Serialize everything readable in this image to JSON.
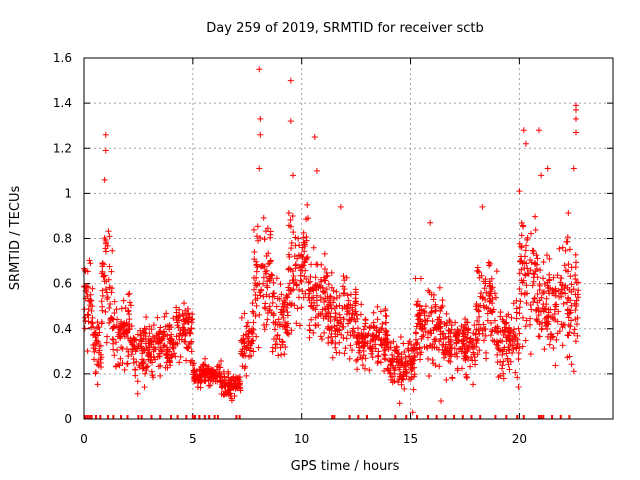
{
  "chart_data": {
    "type": "scatter",
    "title": "Day 259 of 2019, SRMTID for receiver sctb",
    "xlabel": "GPS time / hours",
    "ylabel": "SRMTID / TECUs",
    "xlim": [
      0,
      24.3
    ],
    "ylim": [
      0,
      1.6
    ],
    "x_ticks": [
      0,
      5,
      10,
      15,
      20
    ],
    "x_tick_labels": [
      "0",
      "5",
      "10",
      "15",
      "20"
    ],
    "y_ticks": [
      0,
      0.2,
      0.4,
      0.6,
      0.8,
      1.0,
      1.2,
      1.4,
      1.6
    ],
    "y_tick_labels": [
      "0",
      "0.2",
      "0.4",
      "0.6",
      "0.8",
      "1",
      "1.2",
      "1.4",
      "1.6"
    ],
    "grid": true,
    "marker": "+",
    "color": "#ff0000",
    "series": [
      {
        "name": "SRMTID",
        "segments": [
          {
            "x0": 0.0,
            "x1": 0.4,
            "base": 0.5,
            "spread": 0.18
          },
          {
            "x0": 0.4,
            "x1": 0.8,
            "base": 0.32,
            "spread": 0.15
          },
          {
            "x0": 0.8,
            "x1": 1.3,
            "base": 0.6,
            "spread": 0.22
          },
          {
            "x0": 1.3,
            "x1": 2.2,
            "base": 0.38,
            "spread": 0.14
          },
          {
            "x0": 2.2,
            "x1": 3.2,
            "base": 0.3,
            "spread": 0.12
          },
          {
            "x0": 3.2,
            "x1": 4.2,
            "base": 0.34,
            "spread": 0.12
          },
          {
            "x0": 4.2,
            "x1": 5.0,
            "base": 0.38,
            "spread": 0.12
          },
          {
            "x0": 5.0,
            "x1": 6.3,
            "base": 0.2,
            "spread": 0.05
          },
          {
            "x0": 6.3,
            "x1": 7.2,
            "base": 0.15,
            "spread": 0.05
          },
          {
            "x0": 7.2,
            "x1": 7.8,
            "base": 0.35,
            "spread": 0.12
          },
          {
            "x0": 7.8,
            "x1": 8.6,
            "base": 0.62,
            "spread": 0.25
          },
          {
            "x0": 8.6,
            "x1": 9.4,
            "base": 0.45,
            "spread": 0.18
          },
          {
            "x0": 9.4,
            "x1": 10.3,
            "base": 0.68,
            "spread": 0.25
          },
          {
            "x0": 10.3,
            "x1": 11.2,
            "base": 0.55,
            "spread": 0.2
          },
          {
            "x0": 11.2,
            "x1": 12.5,
            "base": 0.45,
            "spread": 0.15
          },
          {
            "x0": 12.5,
            "x1": 14.0,
            "base": 0.35,
            "spread": 0.13
          },
          {
            "x0": 14.0,
            "x1": 15.2,
            "base": 0.25,
            "spread": 0.1
          },
          {
            "x0": 15.2,
            "x1": 16.5,
            "base": 0.4,
            "spread": 0.16
          },
          {
            "x0": 16.5,
            "x1": 18.0,
            "base": 0.33,
            "spread": 0.12
          },
          {
            "x0": 18.0,
            "x1": 19.0,
            "base": 0.48,
            "spread": 0.2
          },
          {
            "x0": 19.0,
            "x1": 20.0,
            "base": 0.35,
            "spread": 0.15
          },
          {
            "x0": 20.0,
            "x1": 20.8,
            "base": 0.62,
            "spread": 0.25
          },
          {
            "x0": 20.8,
            "x1": 21.8,
            "base": 0.5,
            "spread": 0.22
          },
          {
            "x0": 21.8,
            "x1": 22.7,
            "base": 0.55,
            "spread": 0.25
          }
        ],
        "outliers": [
          {
            "x": 1.0,
            "y": 1.26
          },
          {
            "x": 1.0,
            "y": 1.19
          },
          {
            "x": 0.95,
            "y": 1.06
          },
          {
            "x": 8.05,
            "y": 1.55
          },
          {
            "x": 8.1,
            "y": 1.33
          },
          {
            "x": 8.1,
            "y": 1.26
          },
          {
            "x": 8.05,
            "y": 1.11
          },
          {
            "x": 9.5,
            "y": 1.5
          },
          {
            "x": 9.5,
            "y": 1.32
          },
          {
            "x": 9.6,
            "y": 1.08
          },
          {
            "x": 10.6,
            "y": 1.25
          },
          {
            "x": 10.7,
            "y": 1.1
          },
          {
            "x": 11.8,
            "y": 0.94
          },
          {
            "x": 15.9,
            "y": 0.87
          },
          {
            "x": 18.3,
            "y": 0.94
          },
          {
            "x": 20.2,
            "y": 1.28
          },
          {
            "x": 20.3,
            "y": 1.22
          },
          {
            "x": 20.9,
            "y": 1.28
          },
          {
            "x": 20.0,
            "y": 1.01
          },
          {
            "x": 21.3,
            "y": 1.11
          },
          {
            "x": 21.0,
            "y": 1.08
          },
          {
            "x": 22.6,
            "y": 1.39
          },
          {
            "x": 22.6,
            "y": 1.37
          },
          {
            "x": 22.6,
            "y": 1.33
          },
          {
            "x": 22.6,
            "y": 1.27
          },
          {
            "x": 22.5,
            "y": 1.11
          },
          {
            "x": 15.1,
            "y": 0.03
          },
          {
            "x": 14.5,
            "y": 0.07
          },
          {
            "x": 16.4,
            "y": 0.08
          }
        ],
        "zero_points_x": [
          0.05,
          0.15,
          0.25,
          0.35,
          0.55,
          0.75,
          1.1,
          1.35,
          1.7,
          2.0,
          2.5,
          2.65,
          3.1,
          3.5,
          4.0,
          4.3,
          4.7,
          5.0,
          5.1,
          5.3,
          5.55,
          5.75,
          6.0,
          6.15,
          7.0,
          7.15,
          11.4,
          11.5,
          12.2,
          12.6,
          13.0,
          13.6,
          14.3,
          14.8,
          15.3,
          15.8,
          16.2,
          16.6,
          17.0,
          17.4,
          17.8,
          18.2,
          18.9,
          19.4,
          19.9,
          20.2,
          20.9,
          21.0,
          21.1,
          21.5,
          21.9,
          22.3
        ]
      }
    ]
  }
}
